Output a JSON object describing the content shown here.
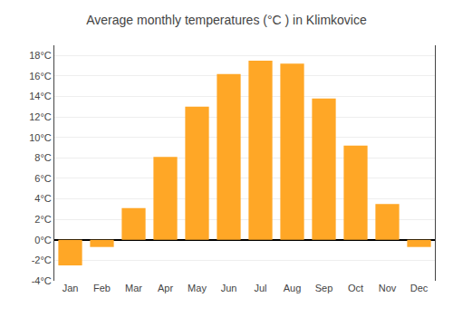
{
  "chart_data": {
    "type": "bar",
    "title": "Average monthly temperatures (°C ) in Klimkovice",
    "categories": [
      "Jan",
      "Feb",
      "Mar",
      "Apr",
      "May",
      "Jun",
      "Jul",
      "Aug",
      "Sep",
      "Oct",
      "Nov",
      "Dec"
    ],
    "values": [
      -2.5,
      -0.7,
      3.1,
      8.1,
      13.0,
      16.2,
      17.5,
      17.2,
      13.8,
      9.2,
      3.5,
      -0.7
    ],
    "color": "#FFA726",
    "ylim": [
      -4,
      19
    ],
    "yticks": [
      {
        "value": -4,
        "label": "-4°C"
      },
      {
        "value": -2,
        "label": "-2°C"
      },
      {
        "value": 0,
        "label": "0°C"
      },
      {
        "value": 2,
        "label": "2°C"
      },
      {
        "value": 4,
        "label": "4°C"
      },
      {
        "value": 6,
        "label": "6°C"
      },
      {
        "value": 8,
        "label": "8°C"
      },
      {
        "value": 10,
        "label": "10°C"
      },
      {
        "value": 12,
        "label": "12°C"
      },
      {
        "value": 14,
        "label": "14°C"
      },
      {
        "value": 16,
        "label": "16°C"
      },
      {
        "value": 18,
        "label": "18°C"
      }
    ],
    "grid": true
  }
}
